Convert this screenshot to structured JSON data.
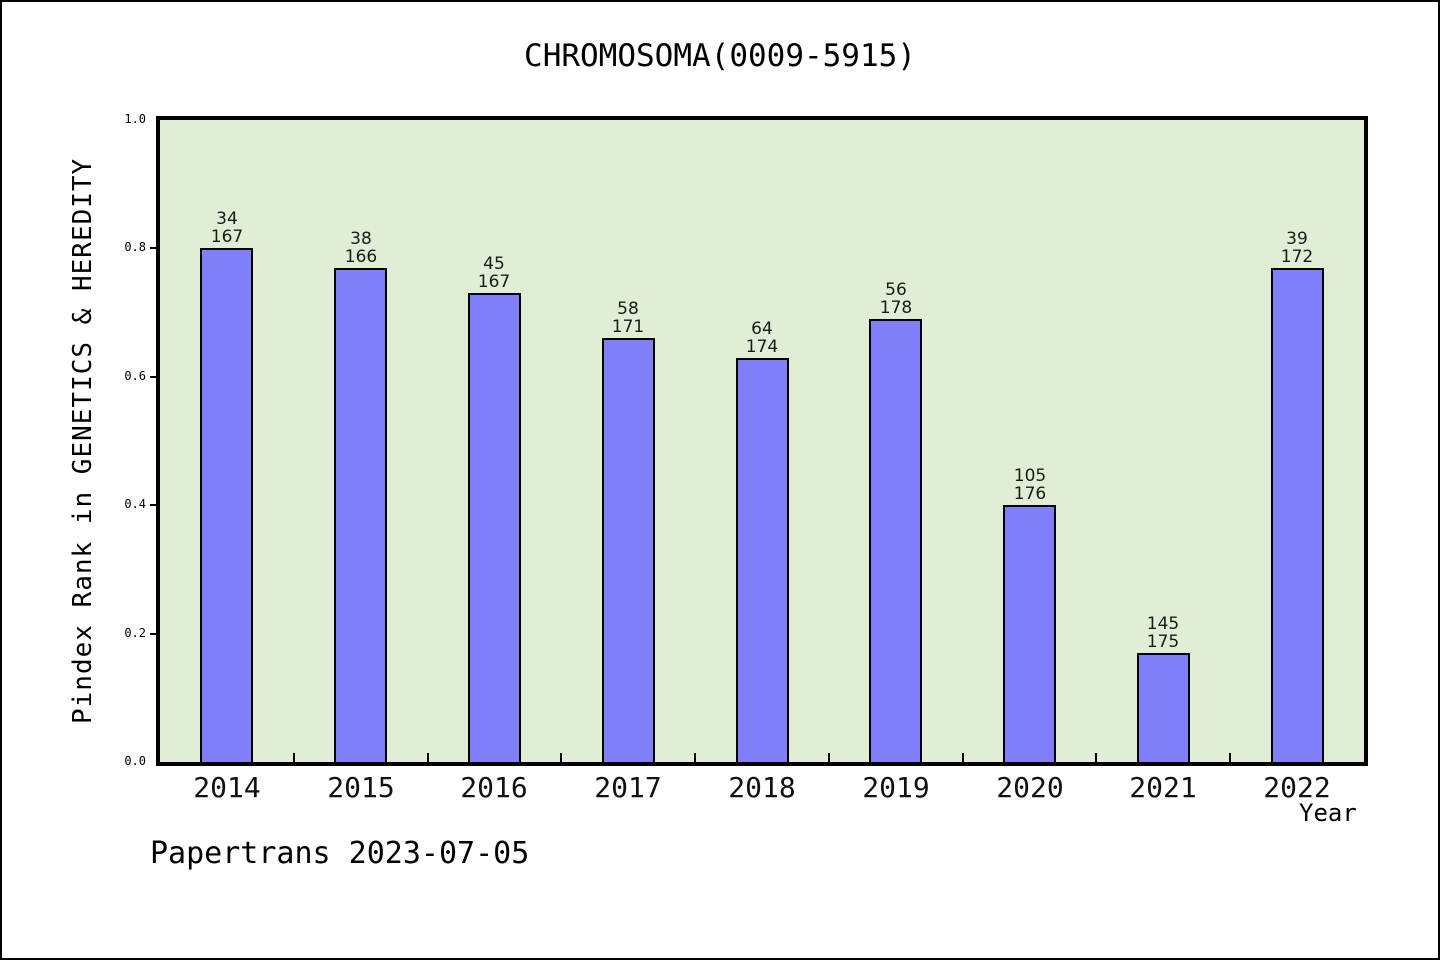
{
  "page": {
    "footer": "Papertrans 2023-07-05"
  },
  "chart_data": {
    "type": "bar",
    "title": "CHROMOSOMA(0009-5915)",
    "xlabel": "Year",
    "ylabel": "Pindex Rank in GENETICS & HEREDITY",
    "categories": [
      "2014",
      "2015",
      "2016",
      "2017",
      "2018",
      "2019",
      "2020",
      "2021",
      "2022"
    ],
    "values": [
      0.8,
      0.77,
      0.73,
      0.66,
      0.63,
      0.69,
      0.4,
      0.17,
      0.77
    ],
    "bar_labels": [
      [
        "34",
        "167"
      ],
      [
        "38",
        "166"
      ],
      [
        "45",
        "167"
      ],
      [
        "58",
        "171"
      ],
      [
        "64",
        "174"
      ],
      [
        "56",
        "178"
      ],
      [
        "105",
        "176"
      ],
      [
        "145",
        "175"
      ],
      [
        "39",
        "172"
      ]
    ],
    "ylim": [
      0.0,
      1.0
    ],
    "yticks": [
      "1.0",
      "0.8",
      "0.6",
      "0.4",
      "0.2",
      "0.0"
    ],
    "grid": false,
    "legend": null,
    "colors": {
      "bar_fill": "#7f7ff8",
      "bar_edge": "#000000",
      "plot_background": "#e1eed6",
      "page_background": "#ffffff",
      "text": "#1a1a1a"
    }
  }
}
